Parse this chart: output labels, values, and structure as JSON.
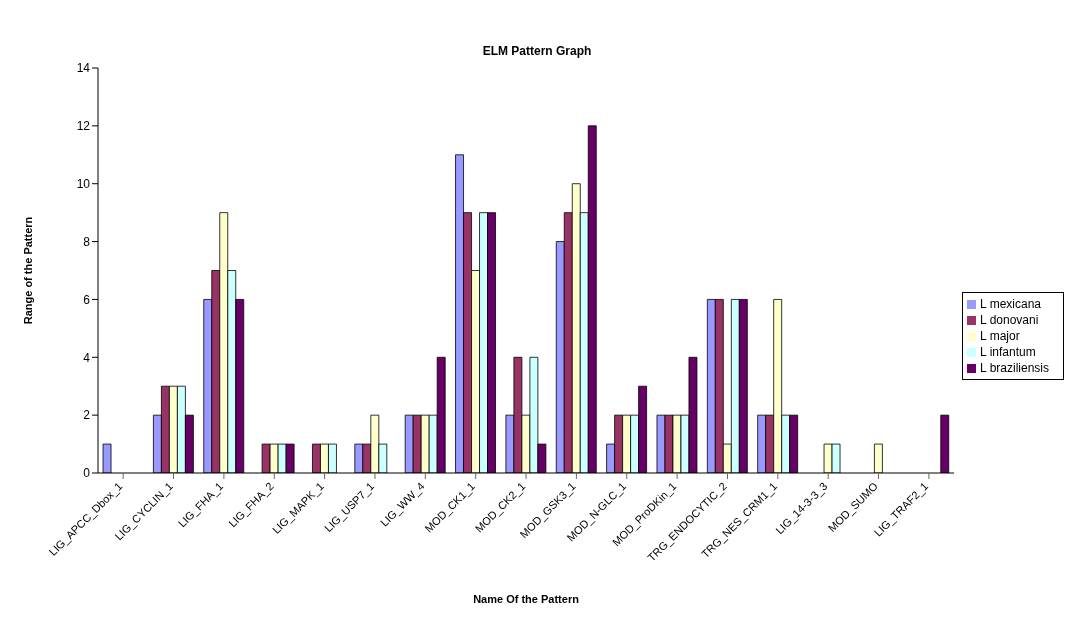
{
  "chart_data": {
    "type": "bar",
    "title": "ELM Pattern Graph",
    "xlabel": "Name Of the Pattern",
    "ylabel": "Range of the Pattern",
    "categories": [
      "LIG_APCC_Dbox_1",
      "LIG_CYCLIN_1",
      "LIG_FHA_1",
      "LIG_FHA_2",
      "LIG_MAPK_1",
      "LIG_USP7_1",
      "LIG_WW_4",
      "MOD_CK1_1",
      "MOD_CK2_1",
      "MOD_GSK3_1",
      "MOD_N-GLC_1",
      "MOD_ProDKin_1",
      "TRG_ENDOCYTIC_2",
      "TRG_NES_CRM1_1",
      "LIG_14-3-3_3",
      "MOD_SUMO",
      "LIG_TRAF2_1"
    ],
    "series": [
      {
        "name": "L mexicana",
        "color": "#9999ff",
        "values": [
          1,
          2,
          6,
          0,
          0,
          1,
          2,
          11,
          2,
          8,
          1,
          2,
          6,
          2,
          0,
          0,
          0
        ]
      },
      {
        "name": "L donovani",
        "color": "#993366",
        "values": [
          0,
          3,
          7,
          1,
          1,
          1,
          2,
          9,
          4,
          9,
          2,
          2,
          6,
          2,
          0,
          0,
          0
        ]
      },
      {
        "name": "L major",
        "color": "#ffffcc",
        "values": [
          0,
          3,
          9,
          1,
          1,
          2,
          2,
          7,
          2,
          10,
          2,
          2,
          1,
          6,
          1,
          1,
          0
        ]
      },
      {
        "name": "L infantum",
        "color": "#ccffff",
        "values": [
          0,
          3,
          7,
          1,
          1,
          1,
          2,
          9,
          4,
          9,
          2,
          2,
          6,
          2,
          1,
          0,
          0
        ]
      },
      {
        "name": "L braziliensis",
        "color": "#660066",
        "values": [
          0,
          2,
          6,
          1,
          0,
          0,
          4,
          9,
          1,
          12,
          3,
          4,
          6,
          2,
          0,
          0,
          2
        ]
      }
    ],
    "ylim": [
      0,
      14
    ],
    "yticks": [
      0,
      2,
      4,
      6,
      8,
      10,
      12,
      14
    ],
    "grid": false,
    "legend": "right"
  }
}
